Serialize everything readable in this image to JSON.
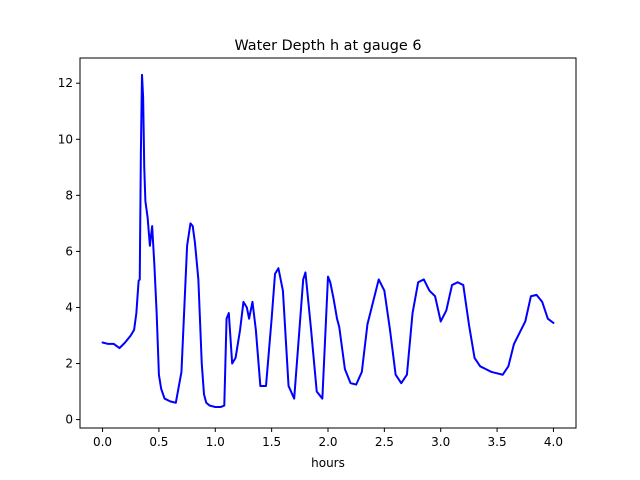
{
  "chart_data": {
    "type": "line",
    "title": "Water Depth h at gauge 6",
    "xlabel": "hours",
    "ylabel": "",
    "xlim": [
      -0.2,
      4.2
    ],
    "ylim": [
      -0.3,
      12.9
    ],
    "xticks": [
      0.0,
      0.5,
      1.0,
      1.5,
      2.0,
      2.5,
      3.0,
      3.5,
      4.0
    ],
    "xtick_labels": [
      "0.0",
      "0.5",
      "1.0",
      "1.5",
      "2.0",
      "2.5",
      "3.0",
      "3.5",
      "4.0"
    ],
    "yticks": [
      0,
      2,
      4,
      6,
      8,
      10,
      12
    ],
    "ytick_labels": [
      "0",
      "2",
      "4",
      "6",
      "8",
      "10",
      "12"
    ],
    "grid": false,
    "series": [
      {
        "color": "#0000ff",
        "x": [
          0.0,
          0.05,
          0.1,
          0.15,
          0.2,
          0.25,
          0.28,
          0.3,
          0.32,
          0.33,
          0.34,
          0.35,
          0.36,
          0.37,
          0.38,
          0.4,
          0.42,
          0.44,
          0.46,
          0.48,
          0.5,
          0.52,
          0.55,
          0.6,
          0.65,
          0.7,
          0.72,
          0.75,
          0.78,
          0.8,
          0.82,
          0.85,
          0.88,
          0.9,
          0.92,
          0.95,
          1.0,
          1.05,
          1.08,
          1.1,
          1.12,
          1.15,
          1.18,
          1.2,
          1.22,
          1.25,
          1.28,
          1.3,
          1.33,
          1.36,
          1.4,
          1.45,
          1.5,
          1.53,
          1.56,
          1.6,
          1.65,
          1.7,
          1.75,
          1.78,
          1.8,
          1.85,
          1.9,
          1.95,
          2.0,
          2.02,
          2.05,
          2.08,
          2.1,
          2.15,
          2.2,
          2.25,
          2.3,
          2.35,
          2.4,
          2.45,
          2.5,
          2.55,
          2.6,
          2.65,
          2.7,
          2.75,
          2.8,
          2.85,
          2.9,
          2.95,
          3.0,
          3.05,
          3.1,
          3.15,
          3.2,
          3.25,
          3.3,
          3.35,
          3.4,
          3.45,
          3.5,
          3.55,
          3.6,
          3.65,
          3.7,
          3.75,
          3.8,
          3.85,
          3.9,
          3.95,
          4.0
        ],
        "y": [
          2.75,
          2.7,
          2.7,
          2.55,
          2.75,
          3.0,
          3.2,
          3.8,
          4.95,
          5.0,
          9.5,
          12.3,
          11.5,
          9.0,
          7.8,
          7.2,
          6.2,
          6.9,
          5.5,
          3.8,
          1.6,
          1.1,
          0.75,
          0.65,
          0.6,
          1.7,
          3.5,
          6.2,
          7.0,
          6.9,
          6.3,
          5.0,
          2.0,
          0.9,
          0.6,
          0.5,
          0.45,
          0.45,
          0.5,
          3.6,
          3.8,
          2.0,
          2.2,
          2.7,
          3.2,
          4.2,
          4.0,
          3.6,
          4.2,
          3.2,
          1.2,
          1.2,
          3.6,
          5.2,
          5.4,
          4.6,
          1.2,
          0.75,
          3.4,
          5.0,
          5.25,
          3.2,
          1.0,
          0.75,
          5.1,
          4.9,
          4.3,
          3.6,
          3.3,
          1.8,
          1.3,
          1.25,
          1.7,
          3.4,
          4.2,
          5.0,
          4.6,
          3.2,
          1.6,
          1.3,
          1.6,
          3.8,
          4.9,
          5.0,
          4.6,
          4.4,
          3.5,
          3.9,
          4.8,
          4.9,
          4.8,
          3.4,
          2.2,
          1.9,
          1.8,
          1.7,
          1.65,
          1.6,
          1.9,
          2.7,
          3.1,
          3.5,
          4.4,
          4.45,
          4.2,
          3.6,
          3.45
        ]
      }
    ]
  }
}
